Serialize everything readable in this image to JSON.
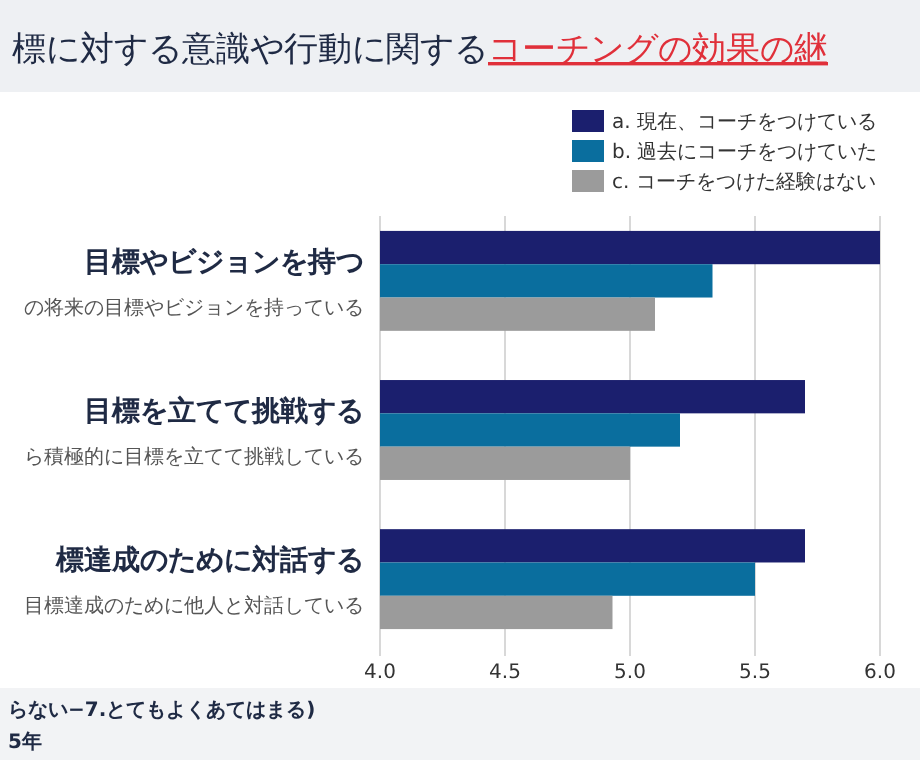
{
  "chart_data": {
    "type": "bar",
    "orientation": "horizontal",
    "title": "標に対する意識や行動に関する",
    "subtitle": "コーチングの効果の継",
    "categories": [
      "目標やビジョンを持つ",
      "目標を立てて挑戦する",
      "標達成のために対話する"
    ],
    "series": [
      {
        "name": "a. 現在、コーチをつけている",
        "color": "#1b1f6e",
        "values": [
          6.0,
          5.7,
          5.7
        ]
      },
      {
        "name": "b. 過去にコーチをつけていた",
        "color": "#0a6e9e",
        "values": [
          5.33,
          5.2,
          5.5
        ]
      },
      {
        "name": "c. コーチをつけた経験はない",
        "color": "#9b9b9b",
        "values": [
          5.1,
          5.0,
          4.93
        ]
      }
    ],
    "annotations": [
      "の将来の目標やビジョンを持っている",
      "ら積極的に目標を立てて挑戦している",
      "目標達成のために他人と対話している",
      "らない−7.とてもよくあてはまる)",
      "5年"
    ],
    "xlim": [
      4.0,
      6.0
    ],
    "xticks": [
      {
        "value": 4.0,
        "label": "4.0"
      },
      {
        "value": 4.5,
        "label": "4.5"
      },
      {
        "value": 5.0,
        "label": "5.0"
      },
      {
        "value": 5.5,
        "label": "5.5"
      },
      {
        "value": 6.0,
        "label": "6.0"
      }
    ],
    "grid": "x",
    "legend": "top right"
  }
}
